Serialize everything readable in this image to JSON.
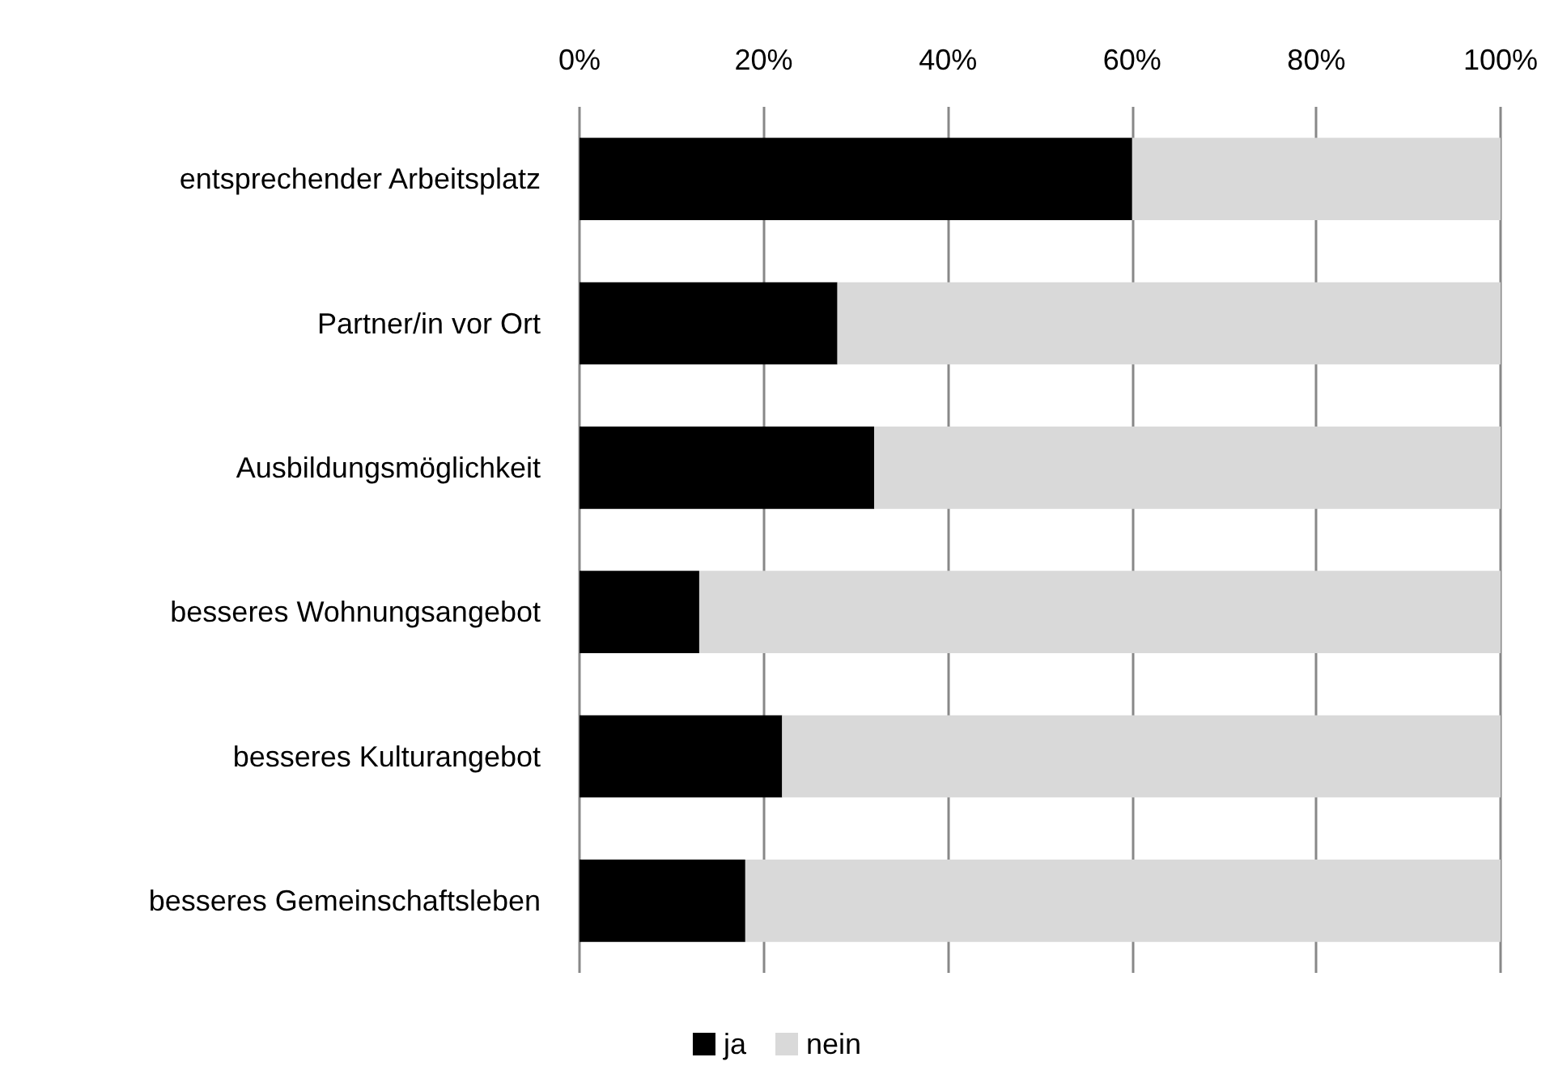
{
  "chart_data": {
    "type": "bar",
    "orientation": "horizontal",
    "stacked": true,
    "categories": [
      "entsprechender Arbeitsplatz",
      "Partner/in vor Ort",
      "Ausbildungsmöglichkeit",
      "besseres Wohnungsangebot",
      "besseres Kulturangebot",
      "besseres Gemeinschaftsleben"
    ],
    "series": [
      {
        "name": "ja",
        "color": "#000000",
        "values": [
          60,
          28,
          32,
          13,
          22,
          18
        ]
      },
      {
        "name": "nein",
        "color": "#d9d9d9",
        "values": [
          40,
          72,
          68,
          87,
          78,
          82
        ]
      }
    ],
    "xlim": [
      0,
      100
    ],
    "xticks": [
      {
        "value": 0,
        "label": "0%"
      },
      {
        "value": 20,
        "label": "20%"
      },
      {
        "value": 40,
        "label": "40%"
      },
      {
        "value": 60,
        "label": "60%"
      },
      {
        "value": 80,
        "label": "80%"
      },
      {
        "value": 100,
        "label": "100%"
      }
    ],
    "grid": "x",
    "legend": "bottom"
  }
}
